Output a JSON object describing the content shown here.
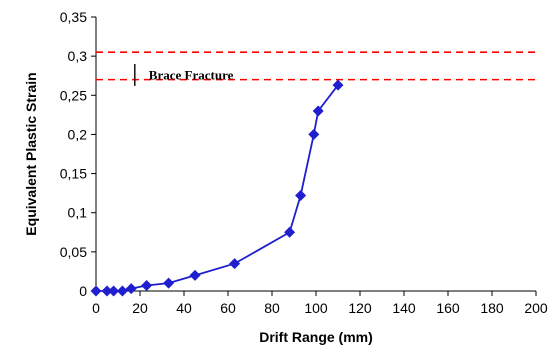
{
  "chart_data": {
    "type": "scatter",
    "xlabel": "Drift Range (mm)",
    "ylabel": "Equivalent Plastic Strain",
    "xlim": [
      0,
      200
    ],
    "ylim": [
      0,
      0.35
    ],
    "x_ticks": [
      "0",
      "20",
      "40",
      "60",
      "80",
      "100",
      "120",
      "140",
      "160",
      "180",
      "200"
    ],
    "y_ticks": [
      "0",
      "0,05",
      "0,1",
      "0,15",
      "0,2",
      "0,25",
      "0,3",
      "0,35"
    ],
    "grid": false,
    "series": [
      {
        "color": "#1f1fcf",
        "marker": "diamond",
        "line": true,
        "x": [
          0,
          5,
          8,
          12,
          16,
          23,
          33,
          45,
          63,
          88,
          93,
          99,
          101,
          110
        ],
        "y": [
          0.0,
          0.0,
          0.0,
          0.0,
          0.003,
          0.007,
          0.01,
          0.02,
          0.035,
          0.075,
          0.122,
          0.2,
          0.23,
          0.263
        ]
      }
    ],
    "reference_lines": [
      {
        "axis": "y",
        "value": 0.305,
        "style": "dashed",
        "color": "#ff0000"
      },
      {
        "axis": "y",
        "value": 0.27,
        "style": "dashed",
        "color": "#ff0000"
      }
    ],
    "annotations": [
      {
        "text": "Brace Fracture",
        "x": 24,
        "y": 0.275
      }
    ]
  }
}
